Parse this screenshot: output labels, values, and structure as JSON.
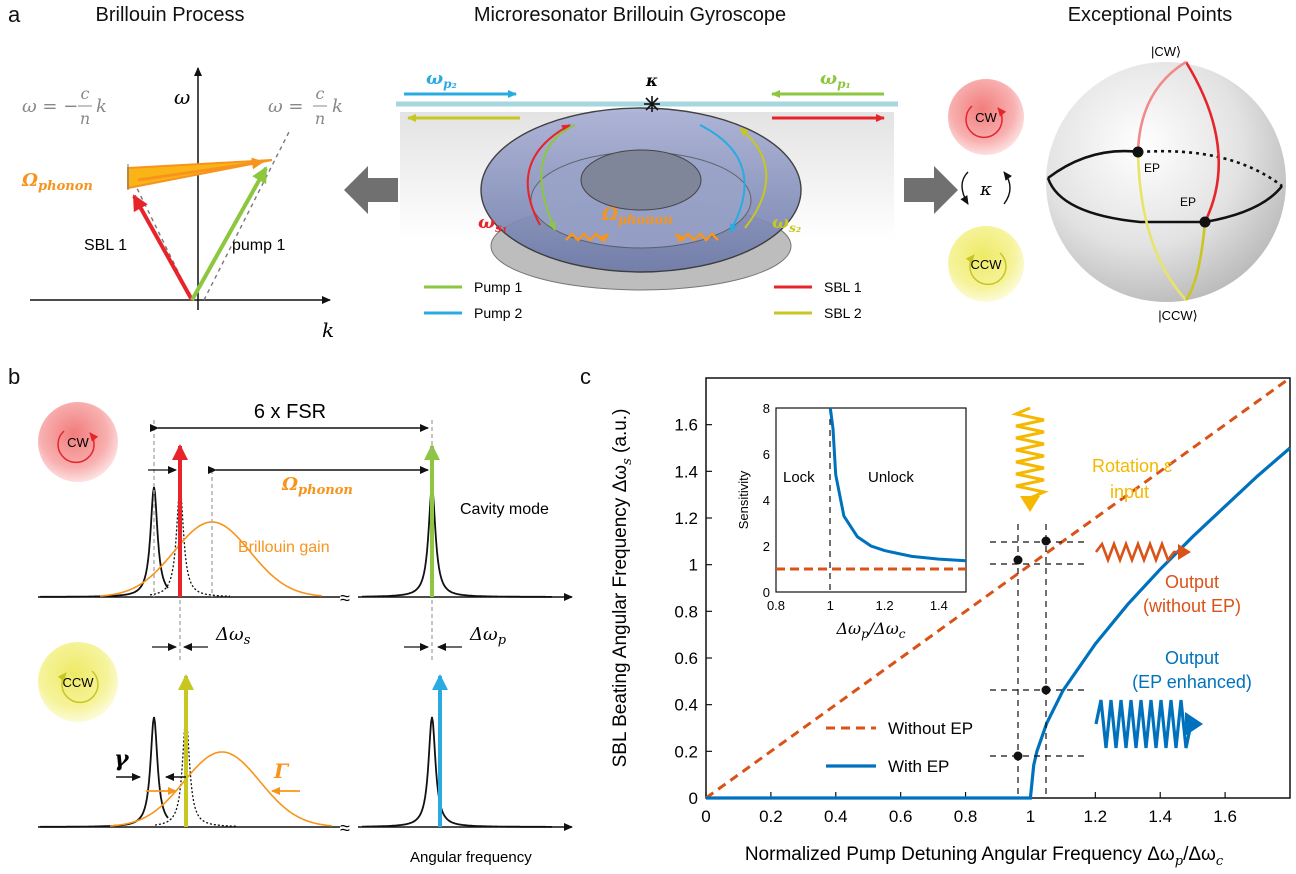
{
  "panel_a": {
    "label": "a",
    "titles": {
      "left": "Brillouin Process",
      "center": "Microresonator Brillouin Gyroscope",
      "right": "Exceptional Points"
    },
    "dispersion": {
      "y_axis": "ω",
      "x_axis": "k",
      "line_left_lhs": "ω = −",
      "line_right_lhs": "ω =",
      "frac_num": "c",
      "frac_den": "n",
      "frac_var": "k",
      "phonon": "Ω",
      "phonon_sub": "phonon",
      "sbl": "SBL 1",
      "pump": "pump 1"
    },
    "resonator": {
      "p2": "ω",
      "p2_sub": "p₂",
      "p1": "ω",
      "p1_sub": "p₁",
      "kappa": "κ",
      "s1": "ω",
      "s1_sub": "s₁",
      "s2": "ω",
      "s2_sub": "s₂",
      "phonon": "Ω",
      "phonon_sub": "phonon",
      "legend": [
        "Pump 1",
        "Pump 2",
        "SBL 1",
        "SBL 2"
      ]
    },
    "ep": {
      "cw": "CW",
      "ccw": "CCW",
      "kappa": "κ",
      "ket_cw": "|CW⟩",
      "ket_ccw": "|CCW⟩",
      "ep1": "EP",
      "ep2": "EP"
    },
    "colors": {
      "pump1": "#8dc63f",
      "pump2": "#29abe2",
      "sbl1": "#e8242b",
      "sbl2": "#c8c621",
      "phonon": "#f7941d"
    }
  },
  "panel_b": {
    "label": "b",
    "cw": "CW",
    "ccw": "CCW",
    "fsr": "6 x FSR",
    "phonon": "Ω",
    "phonon_sub": "phonon",
    "brillouin_gain": "Brillouin gain",
    "cavity_mode": "Cavity mode",
    "dws": "Δω",
    "dws_sub": "s",
    "dwp": "Δω",
    "dwp_sub": "p",
    "gamma": "γ",
    "Gamma": "Γ",
    "xaxis": "Angular frequency"
  },
  "panel_c": {
    "label": "c",
    "ylabel": "SBL Beating Angular Frequency Δω",
    "ylabel_sub": "s",
    "ylabel_unit": " (a.u.)",
    "xlabel": "Normalized Pump Detuning Angular Frequency Δω",
    "xlabel_sub1": "p",
    "xlabel_mid": "/Δω",
    "xlabel_sub2": "c",
    "rotation_line1": "Rotation ε",
    "rotation_line2": "input",
    "output_noep_line1": "Output",
    "output_noep_line2": "(without EP)",
    "output_ep_line1": "Output",
    "output_ep_line2": "(EP enhanced)",
    "legend_without": "Without EP",
    "legend_with": "With EP",
    "inset": {
      "ylabel": "Sensitivity",
      "xlabel": "Δω",
      "xlabel_sub1": "p",
      "xlabel_mid": "/Δω",
      "xlabel_sub2": "c",
      "lock": "Lock",
      "unlock": "Unlock",
      "xticks": [
        "0.8",
        "1",
        "1.2",
        "1.4"
      ],
      "yticks": [
        "0",
        "2",
        "4",
        "6",
        "8"
      ]
    },
    "colors": {
      "with_ep": "#0072bd",
      "without_ep": "#d95319",
      "rotation": "#f5b800"
    }
  },
  "chart_data": {
    "type": "line",
    "xlabel": "Normalized Pump Detuning Angular Frequency Δωp/Δωc",
    "ylabel": "SBL Beating Angular Frequency Δωs (a.u.)",
    "xlim": [
      0,
      1.8
    ],
    "ylim": [
      0,
      1.8
    ],
    "xticks": [
      "0",
      "0.2",
      "0.4",
      "0.6",
      "0.8",
      "1",
      "1.2",
      "1.4",
      "1.6"
    ],
    "yticks": [
      "0",
      "0.2",
      "0.4",
      "0.6",
      "0.8",
      "1",
      "1.2",
      "1.4",
      "1.6"
    ],
    "series": [
      {
        "name": "Without EP",
        "x": [
          0,
          1.8
        ],
        "y": [
          0,
          1.8
        ]
      },
      {
        "name": "With EP",
        "x": [
          0,
          1.0,
          1.01,
          1.02,
          1.05,
          1.1,
          1.2,
          1.3,
          1.4,
          1.5,
          1.6,
          1.7,
          1.8
        ],
        "y": [
          0,
          0,
          0.14,
          0.2,
          0.32,
          0.46,
          0.66,
          0.83,
          0.98,
          1.12,
          1.25,
          1.38,
          1.5
        ]
      }
    ],
    "grid": false,
    "legend": "bottom-center",
    "inset": {
      "xlim": [
        0.8,
        1.5
      ],
      "ylim": [
        0,
        8
      ],
      "series": [
        {
          "name": "With EP",
          "x": [
            1.0,
            1.01,
            1.02,
            1.05,
            1.1,
            1.15,
            1.2,
            1.3,
            1.4,
            1.5
          ],
          "y": [
            8,
            7.1,
            5.1,
            3.3,
            2.4,
            2.0,
            1.8,
            1.55,
            1.43,
            1.36
          ]
        },
        {
          "name": "Without EP",
          "x": [
            0.8,
            1.5
          ],
          "y": [
            1,
            1
          ]
        }
      ]
    }
  }
}
